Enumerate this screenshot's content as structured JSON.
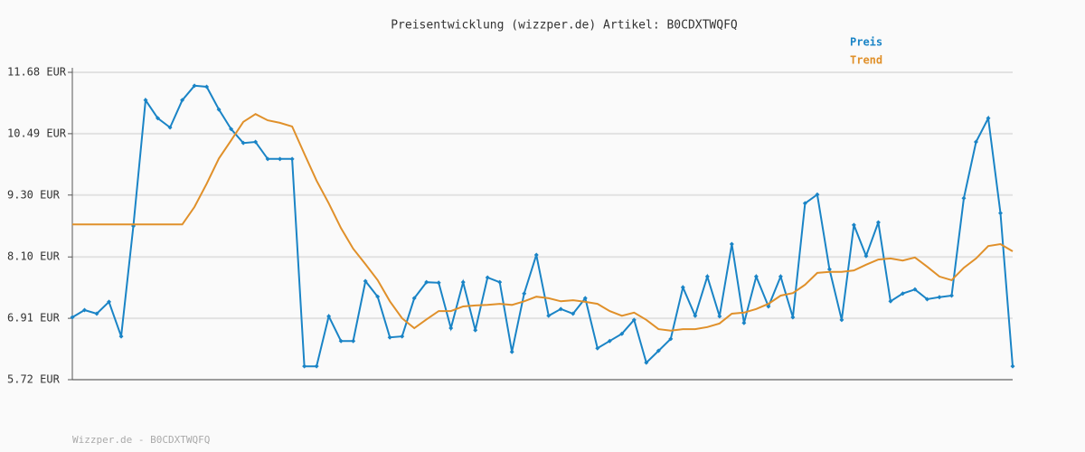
{
  "chart_data": {
    "type": "line",
    "title": "Preisentwicklung (wizzper.de) Artikel: B0CDXTWQFQ",
    "source": "Wizzper.de - B0CDXTWQFQ",
    "ylim": [
      5.72,
      11.68
    ],
    "yticks": [
      {
        "value": 5.72,
        "label": "5.72 EUR"
      },
      {
        "value": 6.91,
        "label": "6.91 EUR"
      },
      {
        "value": 8.1,
        "label": "8.10 EUR"
      },
      {
        "value": 9.3,
        "label": "9.30 EUR"
      },
      {
        "value": 10.49,
        "label": "10.49 EUR"
      },
      {
        "value": 11.68,
        "label": "11.68 EUR"
      }
    ],
    "grid": true,
    "legend": "top-right",
    "series": [
      {
        "name": "Preis",
        "color": "#1a84c6",
        "markers": true,
        "values": [
          6.93,
          7.07,
          7.0,
          7.23,
          6.56,
          8.7,
          11.14,
          10.79,
          10.61,
          11.14,
          11.42,
          11.4,
          10.96,
          10.58,
          10.31,
          10.33,
          10.0,
          10.0,
          10.0,
          5.98,
          5.98,
          6.95,
          6.47,
          6.47,
          7.63,
          7.33,
          6.54,
          6.56,
          7.3,
          7.61,
          7.6,
          6.72,
          7.61,
          6.68,
          7.7,
          7.61,
          6.26,
          7.39,
          8.14,
          6.96,
          7.09,
          7.0,
          7.3,
          6.33,
          6.47,
          6.61,
          6.88,
          6.05,
          6.28,
          6.51,
          7.51,
          6.96,
          7.72,
          6.95,
          8.35,
          6.82,
          7.72,
          7.14,
          7.72,
          6.93,
          9.14,
          9.31,
          7.86,
          6.88,
          8.72,
          8.12,
          8.77,
          7.24,
          7.39,
          7.47,
          7.28,
          7.32,
          7.35,
          9.24,
          10.33,
          10.79,
          8.95,
          5.98
        ]
      },
      {
        "name": "Trend",
        "color": "#e0902a",
        "markers": false,
        "values": [
          8.73,
          8.73,
          8.73,
          8.73,
          8.73,
          8.73,
          8.73,
          8.73,
          8.73,
          8.73,
          9.07,
          9.52,
          10.01,
          10.36,
          10.72,
          10.87,
          10.75,
          10.7,
          10.63,
          10.1,
          9.58,
          9.14,
          8.66,
          8.26,
          7.96,
          7.65,
          7.24,
          6.91,
          6.72,
          6.89,
          7.05,
          7.05,
          7.14,
          7.16,
          7.17,
          7.19,
          7.17,
          7.24,
          7.33,
          7.3,
          7.24,
          7.26,
          7.23,
          7.19,
          7.05,
          6.96,
          7.02,
          6.88,
          6.7,
          6.67,
          6.7,
          6.7,
          6.74,
          6.81,
          7.0,
          7.02,
          7.09,
          7.19,
          7.35,
          7.4,
          7.56,
          7.79,
          7.81,
          7.81,
          7.84,
          7.95,
          8.05,
          8.07,
          8.03,
          8.09,
          7.91,
          7.72,
          7.65,
          7.89,
          8.07,
          8.31,
          8.35,
          8.21
        ]
      }
    ]
  }
}
